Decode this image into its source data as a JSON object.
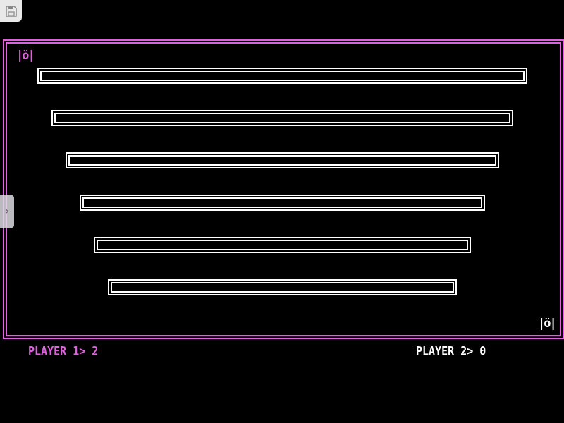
{
  "colors": {
    "player1": "#e060e0",
    "player2": "#ffffff",
    "border": "#e060e0",
    "bars": "#ffffff"
  },
  "player1": {
    "glyph": "|ö|",
    "label": "PLAYER 1> 2",
    "score": 2
  },
  "player2": {
    "glyph": "|ö|",
    "label": "PLAYER 2> 0",
    "score": 0
  },
  "toolbar": {
    "save_icon": "floppy-disk-icon",
    "side_tab_icon": "chevron-right-icon",
    "side_tab_glyph": "›"
  }
}
